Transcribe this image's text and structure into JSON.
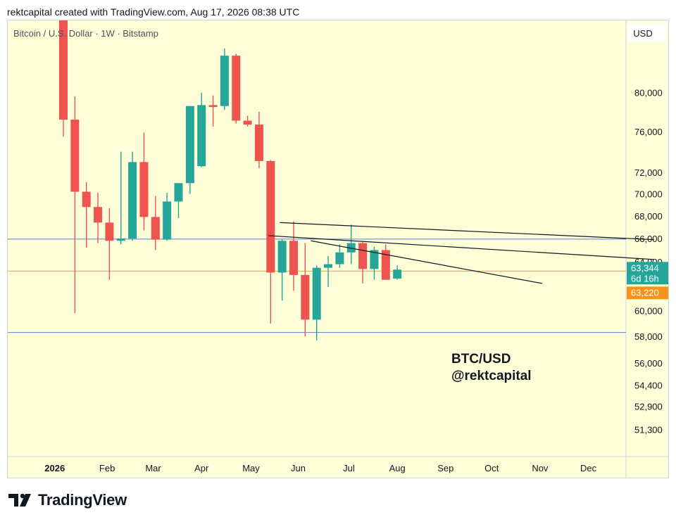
{
  "header": {
    "text": "rektcapital created with TradingView.com, Aug 17, 2026 08:38 UTC"
  },
  "footer": {
    "brand": "TradingView",
    "logo_icon": "tradingview-logo-icon"
  },
  "chart_data": {
    "type": "candlestick",
    "symbol_line": "Bitcoin / U.S. Dollar · 1W · Bitstamp",
    "currency_button": "USD",
    "annotation": [
      "BTC/USD",
      "@rektcapital"
    ],
    "y_scale": "log",
    "ylim": [
      49500,
      88000
    ],
    "y_ticks": [
      {
        "value": 80000,
        "label": "80,000"
      },
      {
        "value": 76000,
        "label": "76,000"
      },
      {
        "value": 72000,
        "label": "72,000"
      },
      {
        "value": 70000,
        "label": "70,000"
      },
      {
        "value": 68000,
        "label": "68,000"
      },
      {
        "value": 66000,
        "label": "66,000"
      },
      {
        "value": 64000,
        "label": "64,000"
      },
      {
        "value": 60000,
        "label": "60,000"
      },
      {
        "value": 58000,
        "label": "58,000"
      },
      {
        "value": 56000,
        "label": "56,000"
      },
      {
        "value": 54400,
        "label": "54,400"
      },
      {
        "value": 52900,
        "label": "52,900"
      },
      {
        "value": 51300,
        "label": "51,300"
      }
    ],
    "x_ticks": [
      {
        "week": -0.75,
        "label": "2026",
        "bold": true
      },
      {
        "week": 3.8,
        "label": "Feb"
      },
      {
        "week": 7.8,
        "label": "Mar"
      },
      {
        "week": 12.0,
        "label": "Apr"
      },
      {
        "week": 16.3,
        "label": "May"
      },
      {
        "week": 20.4,
        "label": "Jun"
      },
      {
        "week": 24.8,
        "label": "Jul"
      },
      {
        "week": 29.0,
        "label": "Aug"
      },
      {
        "week": 33.2,
        "label": "Sep"
      },
      {
        "week": 37.2,
        "label": "Oct"
      },
      {
        "week": 41.4,
        "label": "Nov"
      },
      {
        "week": 45.6,
        "label": "Dec"
      }
    ],
    "candles": [
      {
        "o": 95000,
        "h": 99000,
        "l": 75500,
        "c": 77200
      },
      {
        "o": 77200,
        "h": 79600,
        "l": 59800,
        "c": 70200
      },
      {
        "o": 70200,
        "h": 71100,
        "l": 65200,
        "c": 68800
      },
      {
        "o": 68800,
        "h": 70100,
        "l": 65600,
        "c": 67400
      },
      {
        "o": 67400,
        "h": 68700,
        "l": 62500,
        "c": 65800
      },
      {
        "o": 65800,
        "h": 74000,
        "l": 65500,
        "c": 66000
      },
      {
        "o": 66000,
        "h": 74000,
        "l": 65800,
        "c": 73000
      },
      {
        "o": 73000,
        "h": 75900,
        "l": 66700,
        "c": 67900
      },
      {
        "o": 67900,
        "h": 69800,
        "l": 65000,
        "c": 65900
      },
      {
        "o": 65900,
        "h": 70100,
        "l": 65800,
        "c": 69300
      },
      {
        "o": 69300,
        "h": 71000,
        "l": 67800,
        "c": 71000
      },
      {
        "o": 71000,
        "h": 78600,
        "l": 70000,
        "c": 78600
      },
      {
        "o": 72600,
        "h": 80000,
        "l": 72500,
        "c": 78700
      },
      {
        "o": 78700,
        "h": 79700,
        "l": 76500,
        "c": 78500
      },
      {
        "o": 78600,
        "h": 84800,
        "l": 78200,
        "c": 84000
      },
      {
        "o": 84000,
        "h": 84200,
        "l": 76800,
        "c": 77100
      },
      {
        "o": 77100,
        "h": 77600,
        "l": 76500,
        "c": 76700
      },
      {
        "o": 76700,
        "h": 78000,
        "l": 72400,
        "c": 73100
      },
      {
        "o": 73100,
        "h": 73200,
        "l": 59000,
        "c": 63100
      },
      {
        "o": 63100,
        "h": 65900,
        "l": 60800,
        "c": 65800
      },
      {
        "o": 65800,
        "h": 67500,
        "l": 61600,
        "c": 62900
      },
      {
        "o": 62900,
        "h": 65600,
        "l": 58000,
        "c": 59300
      },
      {
        "o": 59300,
        "h": 63700,
        "l": 57700,
        "c": 63500
      },
      {
        "o": 63500,
        "h": 64500,
        "l": 61900,
        "c": 63800
      },
      {
        "o": 63800,
        "h": 65500,
        "l": 63500,
        "c": 64800
      },
      {
        "o": 64800,
        "h": 67200,
        "l": 63800,
        "c": 65600
      },
      {
        "o": 65600,
        "h": 65700,
        "l": 62200,
        "c": 63400
      },
      {
        "o": 63400,
        "h": 65300,
        "l": 62500,
        "c": 65000
      },
      {
        "o": 65000,
        "h": 65500,
        "l": 62600,
        "c": 62500
      },
      {
        "o": 62600,
        "h": 63700,
        "l": 62500,
        "c": 63344
      }
    ],
    "levels": [
      {
        "price": 65950,
        "color": "#5b7fd1",
        "name": "upper-support-line"
      },
      {
        "price": 63220,
        "color": "#f0a830",
        "name": "orange-level-line"
      },
      {
        "price": 58300,
        "color": "#5b7fd1",
        "name": "lower-support-line"
      }
    ],
    "trendlines": [
      {
        "start": {
          "week": 18.8,
          "price": 67400
        },
        "end": {
          "week": 51.3,
          "price": 65900
        },
        "name": "trendline-upper"
      },
      {
        "start": {
          "week": 17.8,
          "price": 66250
        },
        "end": {
          "week": 51.3,
          "price": 64200
        },
        "name": "trendline-middle"
      },
      {
        "start": {
          "week": 21.5,
          "price": 65800
        },
        "end": {
          "week": 41.6,
          "price": 62200
        },
        "name": "trendline-steep"
      }
    ],
    "price_tags": [
      {
        "label": "63,344",
        "sublabel": "6d 16h",
        "price": 63344,
        "color": "#26a69a"
      },
      {
        "label": "63,220",
        "price": 63220,
        "color": "#f7931a"
      }
    ],
    "colors": {
      "up": "#26a69a",
      "down": "#ef5350",
      "background": "#fefed9",
      "trend": "#131722"
    }
  }
}
